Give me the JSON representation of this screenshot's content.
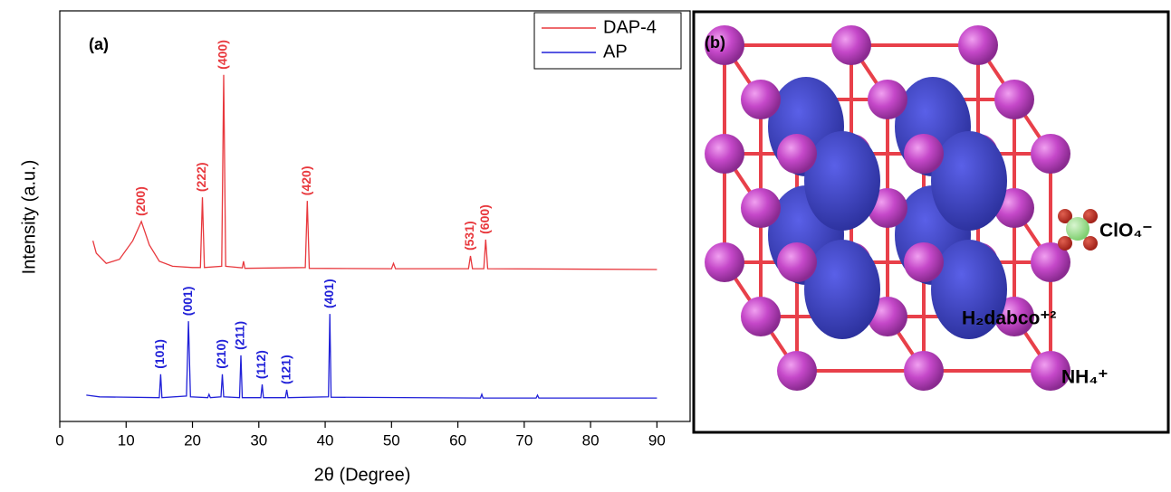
{
  "chart_data": {
    "type": "line",
    "panel_label": "(a)",
    "x_label": "2θ (Degree)",
    "y_label": "Intensity (a.u.)",
    "xlim": [
      0,
      95
    ],
    "xticks": [
      0,
      10,
      20,
      30,
      40,
      50,
      60,
      70,
      80,
      90
    ],
    "ylim": [
      0,
      100
    ],
    "legend": "top-right",
    "series": [
      {
        "name": "DAP-4",
        "color": "#e8383d",
        "x": [
          5,
          5.5,
          7,
          9,
          11,
          12.3,
          13.5,
          15,
          17,
          20,
          21.2,
          21.5,
          21.8,
          24.4,
          24.7,
          25.0,
          27.5,
          27.7,
          27.9,
          37.0,
          37.3,
          37.6,
          50,
          50.3,
          50.6,
          61.6,
          61.9,
          62.2,
          63.9,
          64.2,
          64.5,
          90
        ],
        "values": [
          44,
          41,
          38.5,
          39.5,
          44,
          48.7,
          43,
          39,
          37.8,
          37.5,
          37.5,
          54.6,
          37.5,
          37.8,
          84.4,
          37.8,
          37.4,
          39,
          37.3,
          37.5,
          53.7,
          37.3,
          37.2,
          38.5,
          37.2,
          37.2,
          40.3,
          37.2,
          37.2,
          44.3,
          37.2,
          37
        ],
        "value_labels": [
          null,
          null,
          null,
          null,
          null,
          "(200)",
          null,
          null,
          null,
          null,
          null,
          "(222)",
          null,
          null,
          "(400)",
          null,
          null,
          null,
          null,
          null,
          "(420)",
          null,
          null,
          null,
          null,
          null,
          "(531)",
          null,
          null,
          "(600)",
          null,
          null
        ]
      },
      {
        "name": "AP",
        "color": "#2020d8",
        "x": [
          4,
          6,
          15,
          15.2,
          15.4,
          19.1,
          19.4,
          19.7,
          22.3,
          22.5,
          22.7,
          24.3,
          24.5,
          24.7,
          27.1,
          27.3,
          27.5,
          30.3,
          30.5,
          30.7,
          34,
          34.2,
          34.4,
          40.5,
          40.7,
          40.9,
          63.4,
          63.6,
          63.8,
          71.8,
          72,
          72.2,
          90
        ],
        "values": [
          6.4,
          6,
          5.8,
          11.5,
          5.8,
          6.2,
          24.4,
          6,
          5.8,
          6.6,
          5.8,
          6,
          11.5,
          6,
          5.8,
          16.1,
          5.8,
          5.8,
          9.0,
          5.8,
          5.8,
          7.7,
          5.8,
          6,
          26.2,
          5.9,
          5.7,
          6.6,
          5.7,
          5.7,
          6.4,
          5.7,
          5.7
        ],
        "value_labels": [
          null,
          null,
          null,
          "(101)",
          null,
          null,
          "(001)",
          null,
          null,
          null,
          null,
          null,
          "(210)",
          null,
          null,
          "(211)",
          null,
          null,
          "(112)",
          null,
          null,
          "(121)",
          null,
          null,
          "(401)",
          null,
          null,
          null,
          null,
          null,
          null,
          null,
          null
        ]
      }
    ]
  },
  "panel_b": {
    "label": "(b)",
    "perchlorate": "ClO₄⁻",
    "dication": "H₂dabco⁺²",
    "ammonium": "NH₄⁺"
  }
}
